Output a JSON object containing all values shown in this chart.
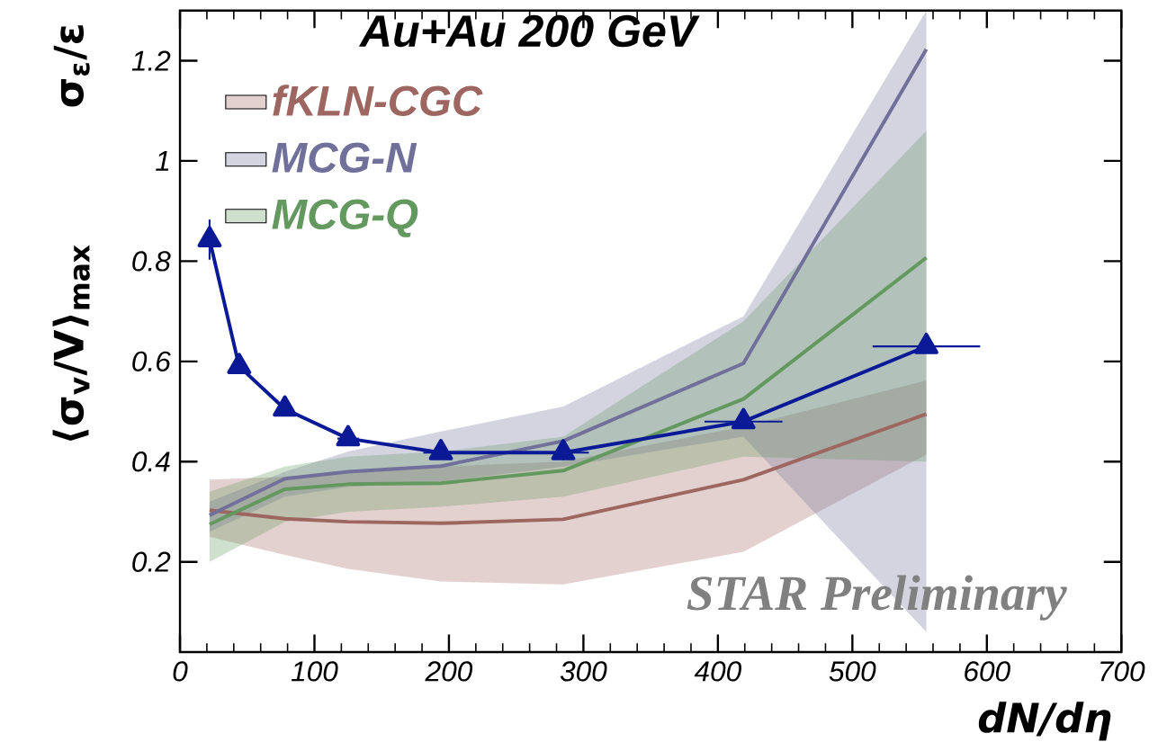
{
  "chart_data": {
    "type": "line",
    "title": "Au+Au 200 GeV",
    "xlabel": "dN/dη",
    "ylabel": "⟨σ$_{v}$/V⟩$_{max}$",
    "annotations": [
      "STAR Preliminary",
      "σ$_{ε}$/ε"
    ],
    "xlim": [
      0,
      700
    ],
    "ylim": [
      0.02,
      1.3
    ],
    "xticks": [
      0,
      100,
      200,
      300,
      400,
      500,
      600,
      700
    ],
    "yticks": [
      0.2,
      0.4,
      0.6,
      0.8,
      1,
      1.2
    ],
    "legend": "top left",
    "series": [
      {
        "name": "fKLN-CGC",
        "color": "#9e6660",
        "x": [
          22,
          78,
          125,
          194,
          285,
          419,
          555
        ],
        "values": [
          0.303,
          0.286,
          0.28,
          0.277,
          0.285,
          0.364,
          0.495
        ],
        "lower": [
          0.25,
          0.214,
          0.186,
          0.161,
          0.155,
          0.22,
          0.414
        ],
        "upper": [
          0.364,
          0.37,
          0.38,
          0.39,
          0.4,
          0.47,
          0.562
        ],
        "marker": "none"
      },
      {
        "name": "MCG-N",
        "color": "#70709a",
        "x": [
          22,
          78,
          125,
          194,
          285,
          419,
          555
        ],
        "values": [
          0.293,
          0.366,
          0.38,
          0.391,
          0.441,
          0.596,
          1.223
        ],
        "lower": [
          0.26,
          0.33,
          0.35,
          0.36,
          0.39,
          0.45,
          0.06
        ],
        "upper": [
          0.32,
          0.38,
          0.42,
          0.46,
          0.51,
          0.69,
          1.3
        ],
        "marker": "none"
      },
      {
        "name": "MCG-Q",
        "color": "#63985f",
        "x": [
          22,
          78,
          125,
          194,
          285,
          419,
          555
        ],
        "values": [
          0.275,
          0.345,
          0.355,
          0.357,
          0.382,
          0.525,
          0.807
        ],
        "lower": [
          0.2,
          0.28,
          0.3,
          0.31,
          0.33,
          0.41,
          0.4
        ],
        "upper": [
          0.34,
          0.39,
          0.41,
          0.42,
          0.45,
          0.68,
          1.06
        ],
        "marker": "none"
      },
      {
        "color": "#0a1a96",
        "x": [
          22,
          44,
          78,
          125,
          194,
          285,
          419,
          555
        ],
        "values": [
          0.843,
          0.59,
          0.505,
          0.446,
          0.418,
          0.418,
          0.48,
          0.63
        ],
        "errors": [
          0.04,
          null,
          0.01,
          null,
          null,
          0.015,
          0.01,
          null
        ],
        "xerrors": [
          null,
          null,
          5,
          8,
          13,
          19,
          29,
          40
        ],
        "marker": "triangle",
        "line_style": "solid"
      }
    ]
  }
}
